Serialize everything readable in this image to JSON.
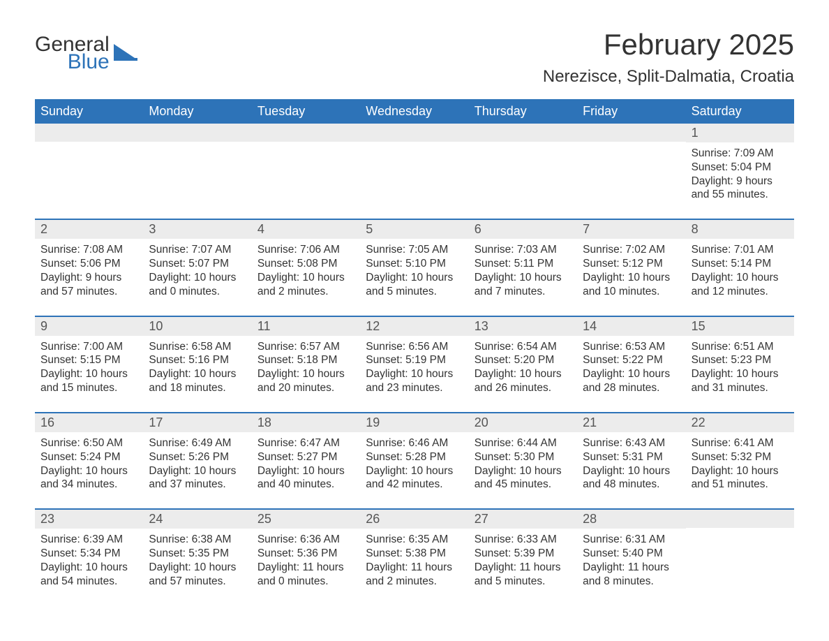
{
  "logo": {
    "word1": "General",
    "word2": "Blue"
  },
  "title": "February 2025",
  "location": "Nerezisce, Split-Dalmatia, Croatia",
  "colors": {
    "header_bg": "#2d73b8",
    "header_text": "#ffffff",
    "daynum_bg": "#ececec",
    "border": "#2d73b8",
    "text": "#333333",
    "logo_blue": "#2d73b8"
  },
  "fonts": {
    "title_size_pt": 32,
    "location_size_pt": 18,
    "weekday_size_pt": 14,
    "daynum_size_pt": 14,
    "body_size_pt": 12
  },
  "weekdays": [
    "Sunday",
    "Monday",
    "Tuesday",
    "Wednesday",
    "Thursday",
    "Friday",
    "Saturday"
  ],
  "weeks": [
    [
      null,
      null,
      null,
      null,
      null,
      null,
      {
        "n": "1",
        "sunrise": "7:09 AM",
        "sunset": "5:04 PM",
        "daylight": "9 hours and 55 minutes."
      }
    ],
    [
      {
        "n": "2",
        "sunrise": "7:08 AM",
        "sunset": "5:06 PM",
        "daylight": "9 hours and 57 minutes."
      },
      {
        "n": "3",
        "sunrise": "7:07 AM",
        "sunset": "5:07 PM",
        "daylight": "10 hours and 0 minutes."
      },
      {
        "n": "4",
        "sunrise": "7:06 AM",
        "sunset": "5:08 PM",
        "daylight": "10 hours and 2 minutes."
      },
      {
        "n": "5",
        "sunrise": "7:05 AM",
        "sunset": "5:10 PM",
        "daylight": "10 hours and 5 minutes."
      },
      {
        "n": "6",
        "sunrise": "7:03 AM",
        "sunset": "5:11 PM",
        "daylight": "10 hours and 7 minutes."
      },
      {
        "n": "7",
        "sunrise": "7:02 AM",
        "sunset": "5:12 PM",
        "daylight": "10 hours and 10 minutes."
      },
      {
        "n": "8",
        "sunrise": "7:01 AM",
        "sunset": "5:14 PM",
        "daylight": "10 hours and 12 minutes."
      }
    ],
    [
      {
        "n": "9",
        "sunrise": "7:00 AM",
        "sunset": "5:15 PM",
        "daylight": "10 hours and 15 minutes."
      },
      {
        "n": "10",
        "sunrise": "6:58 AM",
        "sunset": "5:16 PM",
        "daylight": "10 hours and 18 minutes."
      },
      {
        "n": "11",
        "sunrise": "6:57 AM",
        "sunset": "5:18 PM",
        "daylight": "10 hours and 20 minutes."
      },
      {
        "n": "12",
        "sunrise": "6:56 AM",
        "sunset": "5:19 PM",
        "daylight": "10 hours and 23 minutes."
      },
      {
        "n": "13",
        "sunrise": "6:54 AM",
        "sunset": "5:20 PM",
        "daylight": "10 hours and 26 minutes."
      },
      {
        "n": "14",
        "sunrise": "6:53 AM",
        "sunset": "5:22 PM",
        "daylight": "10 hours and 28 minutes."
      },
      {
        "n": "15",
        "sunrise": "6:51 AM",
        "sunset": "5:23 PM",
        "daylight": "10 hours and 31 minutes."
      }
    ],
    [
      {
        "n": "16",
        "sunrise": "6:50 AM",
        "sunset": "5:24 PM",
        "daylight": "10 hours and 34 minutes."
      },
      {
        "n": "17",
        "sunrise": "6:49 AM",
        "sunset": "5:26 PM",
        "daylight": "10 hours and 37 minutes."
      },
      {
        "n": "18",
        "sunrise": "6:47 AM",
        "sunset": "5:27 PM",
        "daylight": "10 hours and 40 minutes."
      },
      {
        "n": "19",
        "sunrise": "6:46 AM",
        "sunset": "5:28 PM",
        "daylight": "10 hours and 42 minutes."
      },
      {
        "n": "20",
        "sunrise": "6:44 AM",
        "sunset": "5:30 PM",
        "daylight": "10 hours and 45 minutes."
      },
      {
        "n": "21",
        "sunrise": "6:43 AM",
        "sunset": "5:31 PM",
        "daylight": "10 hours and 48 minutes."
      },
      {
        "n": "22",
        "sunrise": "6:41 AM",
        "sunset": "5:32 PM",
        "daylight": "10 hours and 51 minutes."
      }
    ],
    [
      {
        "n": "23",
        "sunrise": "6:39 AM",
        "sunset": "5:34 PM",
        "daylight": "10 hours and 54 minutes."
      },
      {
        "n": "24",
        "sunrise": "6:38 AM",
        "sunset": "5:35 PM",
        "daylight": "10 hours and 57 minutes."
      },
      {
        "n": "25",
        "sunrise": "6:36 AM",
        "sunset": "5:36 PM",
        "daylight": "11 hours and 0 minutes."
      },
      {
        "n": "26",
        "sunrise": "6:35 AM",
        "sunset": "5:38 PM",
        "daylight": "11 hours and 2 minutes."
      },
      {
        "n": "27",
        "sunrise": "6:33 AM",
        "sunset": "5:39 PM",
        "daylight": "11 hours and 5 minutes."
      },
      {
        "n": "28",
        "sunrise": "6:31 AM",
        "sunset": "5:40 PM",
        "daylight": "11 hours and 8 minutes."
      },
      null
    ]
  ],
  "labels": {
    "sunrise": "Sunrise: ",
    "sunset": "Sunset: ",
    "daylight": "Daylight: "
  }
}
